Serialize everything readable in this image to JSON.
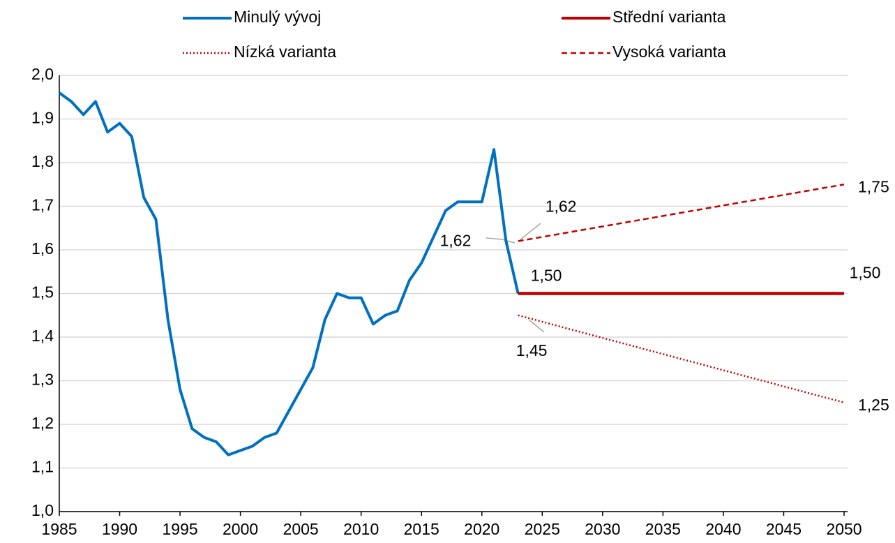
{
  "chart_data": {
    "type": "line",
    "xlim": [
      1985,
      2050
    ],
    "xticks": [
      1985,
      1990,
      1995,
      2000,
      2005,
      2010,
      2015,
      2020,
      2025,
      2030,
      2035,
      2040,
      2045,
      2050
    ],
    "ylim": [
      1.0,
      2.0
    ],
    "yticks": [
      {
        "value": 1.0,
        "label": "1,0"
      },
      {
        "value": 1.1,
        "label": "1,1"
      },
      {
        "value": 1.2,
        "label": "1,2"
      },
      {
        "value": 1.3,
        "label": "1,3"
      },
      {
        "value": 1.4,
        "label": "1,4"
      },
      {
        "value": 1.5,
        "label": "1,5"
      },
      {
        "value": 1.6,
        "label": "1,6"
      },
      {
        "value": 1.7,
        "label": "1,7"
      },
      {
        "value": 1.8,
        "label": "1,8"
      },
      {
        "value": 1.9,
        "label": "1,9"
      },
      {
        "value": 2.0,
        "label": "2,0"
      }
    ],
    "grid": true,
    "legend": "top",
    "series": [
      {
        "name": "Minulý vývoj",
        "color": "#0070c0",
        "dash": "solid",
        "x": [
          1985,
          1986,
          1987,
          1988,
          1989,
          1990,
          1991,
          1992,
          1993,
          1994,
          1995,
          1996,
          1997,
          1998,
          1999,
          2000,
          2001,
          2002,
          2003,
          2004,
          2005,
          2006,
          2007,
          2008,
          2009,
          2010,
          2011,
          2012,
          2013,
          2014,
          2015,
          2016,
          2017,
          2018,
          2019,
          2020,
          2021,
          2022,
          2023
        ],
        "values": [
          1.96,
          1.94,
          1.91,
          1.94,
          1.87,
          1.89,
          1.86,
          1.72,
          1.67,
          1.44,
          1.28,
          1.19,
          1.17,
          1.16,
          1.13,
          1.14,
          1.15,
          1.17,
          1.18,
          1.23,
          1.28,
          1.33,
          1.44,
          1.5,
          1.49,
          1.49,
          1.43,
          1.45,
          1.46,
          1.53,
          1.57,
          1.63,
          1.69,
          1.71,
          1.71,
          1.71,
          1.83,
          1.62,
          1.5
        ],
        "value_labels": [
          null,
          null,
          null,
          null,
          null,
          null,
          null,
          null,
          null,
          null,
          null,
          null,
          null,
          null,
          null,
          null,
          null,
          null,
          null,
          null,
          null,
          null,
          null,
          null,
          null,
          null,
          null,
          null,
          null,
          null,
          null,
          null,
          null,
          null,
          null,
          null,
          null,
          "1,62",
          null
        ]
      },
      {
        "name": "Střední varianta",
        "color": "#c00000",
        "dash": "solid",
        "x": [
          2023,
          2050
        ],
        "values": [
          1.5,
          1.5
        ],
        "value_labels": [
          "1,50",
          "1,50"
        ]
      },
      {
        "name": "Nízká varianta",
        "color": "#c00000",
        "dash": "dotted",
        "x": [
          2023,
          2050
        ],
        "values": [
          1.45,
          1.25
        ],
        "value_labels": [
          "1,45",
          "1,25"
        ]
      },
      {
        "name": "Vysoká varianta",
        "color": "#c00000",
        "dash": "dashed",
        "x": [
          2023,
          2050
        ],
        "values": [
          1.62,
          1.75
        ],
        "value_labels": [
          "1,62",
          "1,75"
        ]
      }
    ]
  }
}
